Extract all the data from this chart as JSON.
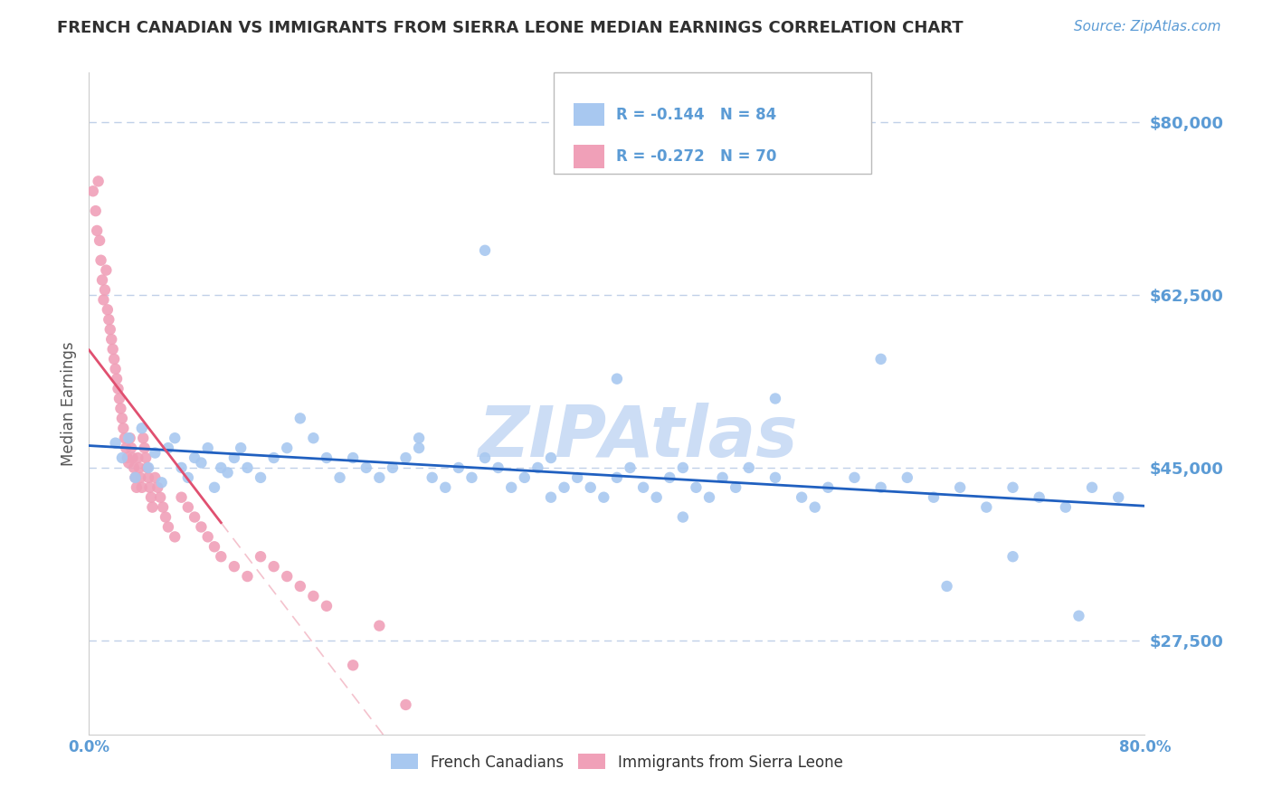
{
  "title": "FRENCH CANADIAN VS IMMIGRANTS FROM SIERRA LEONE MEDIAN EARNINGS CORRELATION CHART",
  "source_text": "Source: ZipAtlas.com",
  "ylabel": "Median Earnings",
  "yticks": [
    27500,
    45000,
    62500,
    80000
  ],
  "ytick_labels": [
    "$27,500",
    "$45,000",
    "$62,500",
    "$80,000"
  ],
  "ylim": [
    18000,
    85000
  ],
  "xlim": [
    0.0,
    0.8
  ],
  "r_blue": -0.144,
  "n_blue": 84,
  "r_pink": -0.272,
  "n_pink": 70,
  "blue_color": "#a8c8f0",
  "pink_color": "#f0a0b8",
  "trend_blue_color": "#2060c0",
  "trend_pink_color": "#e05070",
  "axis_color": "#5b9bd5",
  "title_color": "#303030",
  "watermark_color": "#ccddf5",
  "legend_label_blue": "French Canadians",
  "legend_label_pink": "Immigrants from Sierra Leone",
  "background_color": "#ffffff",
  "grid_color": "#c0d0e8",
  "blue_x": [
    0.02,
    0.025,
    0.03,
    0.035,
    0.04,
    0.045,
    0.05,
    0.055,
    0.06,
    0.065,
    0.07,
    0.075,
    0.08,
    0.085,
    0.09,
    0.095,
    0.1,
    0.105,
    0.11,
    0.115,
    0.12,
    0.13,
    0.14,
    0.15,
    0.16,
    0.17,
    0.18,
    0.19,
    0.2,
    0.21,
    0.22,
    0.23,
    0.24,
    0.25,
    0.26,
    0.27,
    0.28,
    0.29,
    0.3,
    0.31,
    0.32,
    0.33,
    0.34,
    0.35,
    0.36,
    0.37,
    0.38,
    0.39,
    0.4,
    0.41,
    0.42,
    0.43,
    0.44,
    0.45,
    0.46,
    0.47,
    0.48,
    0.49,
    0.5,
    0.52,
    0.54,
    0.56,
    0.58,
    0.6,
    0.62,
    0.64,
    0.66,
    0.68,
    0.7,
    0.72,
    0.74,
    0.76,
    0.78,
    0.3,
    0.4,
    0.52,
    0.6,
    0.7,
    0.25,
    0.35,
    0.45,
    0.55,
    0.65,
    0.75
  ],
  "blue_y": [
    47500,
    46000,
    48000,
    44000,
    49000,
    45000,
    46500,
    43500,
    47000,
    48000,
    45000,
    44000,
    46000,
    45500,
    47000,
    43000,
    45000,
    44500,
    46000,
    47000,
    45000,
    44000,
    46000,
    47000,
    50000,
    48000,
    46000,
    44000,
    46000,
    45000,
    44000,
    45000,
    46000,
    47000,
    44000,
    43000,
    45000,
    44000,
    46000,
    45000,
    43000,
    44000,
    45000,
    46000,
    43000,
    44000,
    43000,
    42000,
    44000,
    45000,
    43000,
    42000,
    44000,
    45000,
    43000,
    42000,
    44000,
    43000,
    45000,
    44000,
    42000,
    43000,
    44000,
    43000,
    44000,
    42000,
    43000,
    41000,
    43000,
    42000,
    41000,
    43000,
    42000,
    67000,
    54000,
    52000,
    56000,
    36000,
    48000,
    42000,
    40000,
    41000,
    33000,
    30000
  ],
  "pink_x": [
    0.003,
    0.005,
    0.006,
    0.007,
    0.008,
    0.009,
    0.01,
    0.011,
    0.012,
    0.013,
    0.014,
    0.015,
    0.016,
    0.017,
    0.018,
    0.019,
    0.02,
    0.021,
    0.022,
    0.023,
    0.024,
    0.025,
    0.026,
    0.027,
    0.028,
    0.029,
    0.03,
    0.031,
    0.032,
    0.033,
    0.034,
    0.035,
    0.036,
    0.037,
    0.038,
    0.039,
    0.04,
    0.041,
    0.042,
    0.043,
    0.044,
    0.045,
    0.046,
    0.047,
    0.048,
    0.05,
    0.052,
    0.054,
    0.056,
    0.058,
    0.06,
    0.065,
    0.07,
    0.075,
    0.08,
    0.085,
    0.09,
    0.095,
    0.1,
    0.11,
    0.12,
    0.13,
    0.14,
    0.15,
    0.16,
    0.17,
    0.18,
    0.2,
    0.22,
    0.24
  ],
  "pink_y": [
    73000,
    71000,
    69000,
    74000,
    68000,
    66000,
    64000,
    62000,
    63000,
    65000,
    61000,
    60000,
    59000,
    58000,
    57000,
    56000,
    55000,
    54000,
    53000,
    52000,
    51000,
    50000,
    49000,
    48000,
    47000,
    46000,
    45500,
    48000,
    47000,
    46000,
    45000,
    44000,
    43000,
    46000,
    45000,
    44000,
    43000,
    48000,
    47000,
    46000,
    45000,
    44000,
    43000,
    42000,
    41000,
    44000,
    43000,
    42000,
    41000,
    40000,
    39000,
    38000,
    42000,
    41000,
    40000,
    39000,
    38000,
    37000,
    36000,
    35000,
    34000,
    36000,
    35000,
    34000,
    33000,
    32000,
    31000,
    25000,
    29000,
    21000
  ]
}
